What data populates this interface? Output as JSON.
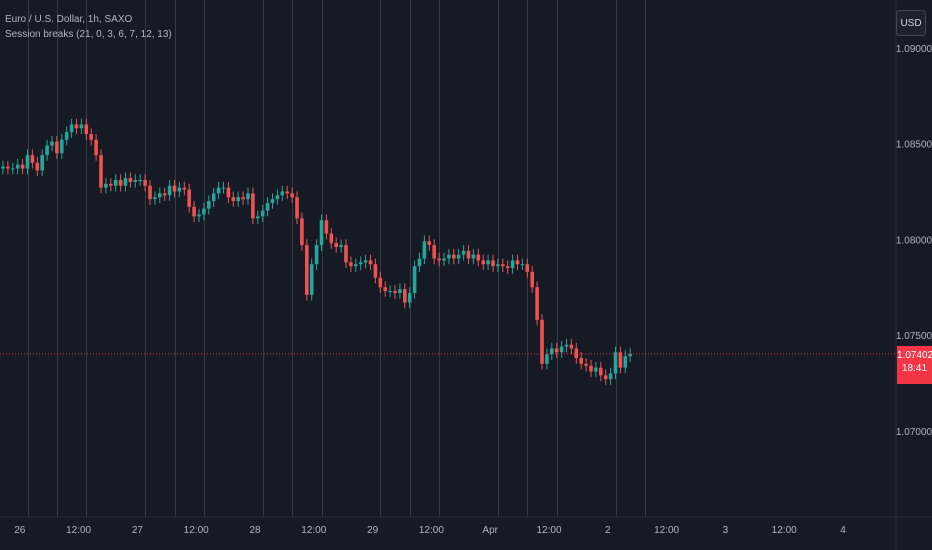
{
  "symbol": {
    "title": "Euro / U.S. Dollar, 1h, SAXO",
    "indicator": "Session breaks (21, 0, 3, 6, 7, 12, 13)"
  },
  "currency_label": "USD",
  "last_price": {
    "value": "1.07402",
    "countdown": "18:41"
  },
  "colors": {
    "background": "#161a25",
    "grid": "#2a2e39",
    "session_line": "#363a45",
    "axis_text": "#b2b5be",
    "up": "#26a69a",
    "down": "#ef5350",
    "price_line": "#f23645"
  },
  "chart_data": {
    "type": "candlestick",
    "interval": "1h",
    "y_axis": {
      "side": "right",
      "range": [
        1.0655,
        1.0925
      ],
      "ticks": [
        1.09,
        1.085,
        1.08,
        1.075,
        1.07
      ],
      "tick_labels": [
        "1.09000",
        "1.08500",
        "1.08000",
        "1.07500",
        "1.07000"
      ]
    },
    "x_axis": {
      "ticks": [
        {
          "label": "26",
          "bar": 2
        },
        {
          "label": "12:00",
          "bar": 14
        },
        {
          "label": "27",
          "bar": 26
        },
        {
          "label": "12:00",
          "bar": 38
        },
        {
          "label": "28",
          "bar": 50
        },
        {
          "label": "12:00",
          "bar": 62
        },
        {
          "label": "29",
          "bar": 74
        },
        {
          "label": "12:00",
          "bar": 86
        },
        {
          "label": "Apr",
          "bar": 98
        },
        {
          "label": "12:00",
          "bar": 110
        },
        {
          "label": "2",
          "bar": 122
        },
        {
          "label": "12:00",
          "bar": 134
        },
        {
          "label": "3",
          "bar": 146
        },
        {
          "label": "12:00",
          "bar": 158
        },
        {
          "label": "4",
          "bar": 170
        }
      ]
    },
    "session_break_bars": [
      5,
      11,
      17,
      29,
      35,
      41,
      53,
      59,
      65,
      77,
      83,
      89,
      101,
      107,
      113,
      125,
      131
    ],
    "last_price_value": 1.07402,
    "candles": [
      {
        "c": 1.0838
      },
      {
        "c": 1.0837
      },
      {
        "c": 1.0837
      },
      {
        "c": 1.0839
      },
      {
        "c": 1.0837
      },
      {
        "c": 1.0844
      },
      {
        "c": 1.084
      },
      {
        "c": 1.0836
      },
      {
        "c": 1.0844
      },
      {
        "c": 1.0849
      },
      {
        "c": 1.0851
      },
      {
        "c": 1.0845
      },
      {
        "c": 1.0852
      },
      {
        "c": 1.0856
      },
      {
        "c": 1.086
      },
      {
        "c": 1.0858
      },
      {
        "c": 1.086
      },
      {
        "c": 1.0855
      },
      {
        "c": 1.0852
      },
      {
        "c": 1.0844
      },
      {
        "c": 1.0827
      },
      {
        "c": 1.0829
      },
      {
        "c": 1.0828
      },
      {
        "c": 1.0831
      },
      {
        "c": 1.0828
      },
      {
        "c": 1.0832
      },
      {
        "c": 1.083
      },
      {
        "c": 1.0831
      },
      {
        "c": 1.0831
      },
      {
        "c": 1.0828
      },
      {
        "c": 1.0821
      },
      {
        "c": 1.0822
      },
      {
        "c": 1.0824
      },
      {
        "c": 1.0823
      },
      {
        "c": 1.0828
      },
      {
        "c": 1.0825
      },
      {
        "c": 1.0827
      },
      {
        "c": 1.0826
      },
      {
        "c": 1.0817
      },
      {
        "c": 1.0812
      },
      {
        "c": 1.0813
      },
      {
        "c": 1.0816
      },
      {
        "c": 1.082
      },
      {
        "c": 1.0824
      },
      {
        "c": 1.0827
      },
      {
        "c": 1.0827
      },
      {
        "c": 1.0822
      },
      {
        "c": 1.082
      },
      {
        "c": 1.0822
      },
      {
        "c": 1.0821
      },
      {
        "c": 1.0824
      },
      {
        "c": 1.0811
      },
      {
        "c": 1.0812
      },
      {
        "c": 1.0815
      },
      {
        "c": 1.0819
      },
      {
        "c": 1.0821
      },
      {
        "c": 1.0823
      },
      {
        "c": 1.0825
      },
      {
        "c": 1.0824
      },
      {
        "c": 1.0822
      },
      {
        "c": 1.0811
      },
      {
        "c": 1.0797
      },
      {
        "c": 1.0771
      },
      {
        "c": 1.0787
      },
      {
        "c": 1.0797
      },
      {
        "c": 1.081
      },
      {
        "c": 1.0803
      },
      {
        "c": 1.0798
      },
      {
        "c": 1.0796
      },
      {
        "c": 1.0797
      },
      {
        "c": 1.0788
      },
      {
        "c": 1.0786
      },
      {
        "c": 1.0787
      },
      {
        "c": 1.0788
      },
      {
        "c": 1.0789
      },
      {
        "c": 1.0787
      },
      {
        "c": 1.078
      },
      {
        "c": 1.0775
      },
      {
        "c": 1.0773
      },
      {
        "c": 1.0773
      },
      {
        "c": 1.0772
      },
      {
        "c": 1.0774
      },
      {
        "c": 1.0767
      },
      {
        "c": 1.0772
      },
      {
        "c": 1.0786
      },
      {
        "c": 1.079
      },
      {
        "c": 1.0799
      },
      {
        "c": 1.0797
      },
      {
        "c": 1.079
      },
      {
        "c": 1.0789
      },
      {
        "c": 1.079
      },
      {
        "c": 1.0792
      },
      {
        "c": 1.079
      },
      {
        "c": 1.0792
      },
      {
        "c": 1.0794
      },
      {
        "c": 1.079
      },
      {
        "c": 1.0792
      },
      {
        "c": 1.0789
      },
      {
        "c": 1.0787
      },
      {
        "c": 1.0789
      },
      {
        "c": 1.0786
      },
      {
        "c": 1.0787
      },
      {
        "c": 1.0786
      },
      {
        "c": 1.0785
      },
      {
        "c": 1.0789
      },
      {
        "c": 1.0787
      },
      {
        "c": 1.0787
      },
      {
        "c": 1.0783
      },
      {
        "c": 1.0775
      },
      {
        "c": 1.0758
      },
      {
        "c": 1.0735
      },
      {
        "c": 1.074
      },
      {
        "c": 1.0743
      },
      {
        "c": 1.0741
      },
      {
        "c": 1.0744
      },
      {
        "c": 1.0745
      },
      {
        "c": 1.0743
      },
      {
        "c": 1.0738
      },
      {
        "c": 1.0735
      },
      {
        "c": 1.0734
      },
      {
        "c": 1.0731
      },
      {
        "c": 1.0733
      },
      {
        "c": 1.0729
      },
      {
        "c": 1.0727
      },
      {
        "c": 1.073
      },
      {
        "c": 1.0741
      },
      {
        "c": 1.0733
      },
      {
        "c": 1.0739
      },
      {
        "c": 1.07402
      }
    ],
    "open_first": 1.0837
  }
}
